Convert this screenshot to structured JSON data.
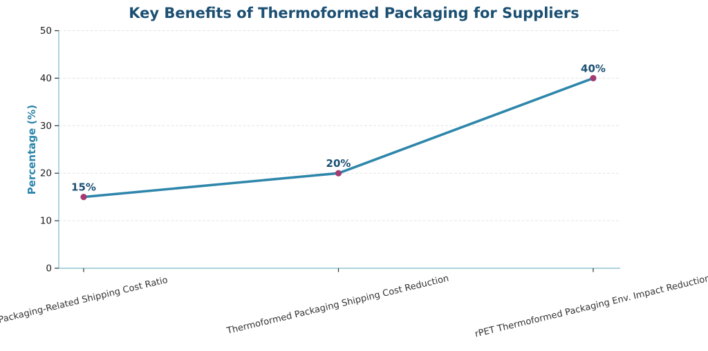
{
  "chart_data": {
    "type": "line",
    "title": "Key Benefits of Thermoformed Packaging for Suppliers",
    "ylabel": "Percentage (%)",
    "xlabel": "",
    "categories": [
      "Packaging-Related Shipping Cost Ratio",
      "Thermoformed Packaging Shipping Cost Reduction",
      "rPET Thermoformed Packaging Env. Impact Reduction"
    ],
    "values": [
      15,
      20,
      40
    ],
    "point_labels": [
      "15%",
      "20%",
      "40%"
    ],
    "ylim": [
      0,
      50
    ],
    "yticks": [
      0,
      10,
      20,
      30,
      40,
      50
    ],
    "grid": "horizontal-dashed",
    "legend": "none",
    "colors": {
      "background": "#ffffff",
      "title": "#1b4f72",
      "ylabel": "#2e86ab",
      "line": "#2e86ab",
      "marker": "#a23b72",
      "point_label": "#1b4f72",
      "grid": "#e3e3e3",
      "spine": "#7ab6cb",
      "tick_mark": "#2f2f2f",
      "ytick_label": "#1a1a1a",
      "xtick_label": "#333333"
    }
  }
}
